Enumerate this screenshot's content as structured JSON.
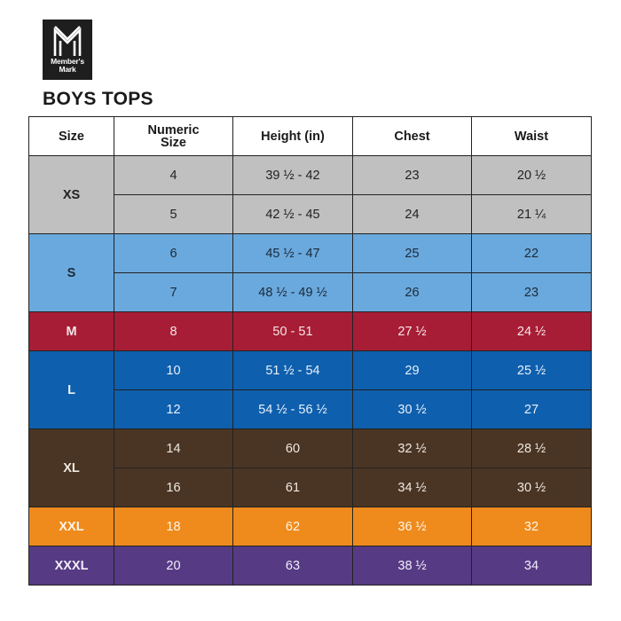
{
  "brand": {
    "line1": "Member's",
    "line2": "Mark",
    "logo_icon": "m-logo-icon"
  },
  "title": "BOYS TOPS",
  "table": {
    "headers": [
      "Size",
      "Numeric Size",
      "Height (in)",
      "Chest",
      "Waist"
    ],
    "groups": [
      {
        "size": "XS",
        "color": "#c0c0c0",
        "rows": [
          {
            "numeric": "4",
            "height": "39 ½ - 42",
            "chest": "23",
            "waist": "20 ½"
          },
          {
            "numeric": "5",
            "height": "42 ½ - 45",
            "chest": "24",
            "waist": "21 ¼"
          }
        ]
      },
      {
        "size": "S",
        "color": "#6aa9dd",
        "rows": [
          {
            "numeric": "6",
            "height": "45 ½ - 47",
            "chest": "25",
            "waist": "22"
          },
          {
            "numeric": "7",
            "height": "48 ½ - 49 ½",
            "chest": "26",
            "waist": "23"
          }
        ]
      },
      {
        "size": "M",
        "color": "#a71d35",
        "rows": [
          {
            "numeric": "8",
            "height": "50 - 51",
            "chest": "27 ½",
            "waist": "24 ½"
          }
        ]
      },
      {
        "size": "L",
        "color": "#0e5fad",
        "rows": [
          {
            "numeric": "10",
            "height": "51 ½ - 54",
            "chest": "29",
            "waist": "25 ½"
          },
          {
            "numeric": "12",
            "height": "54 ½ - 56 ½",
            "chest": "30 ½",
            "waist": "27"
          }
        ]
      },
      {
        "size": "XL",
        "color": "#4a3525",
        "rows": [
          {
            "numeric": "14",
            "height": "60",
            "chest": "32 ½",
            "waist": "28 ½"
          },
          {
            "numeric": "16",
            "height": "61",
            "chest": "34 ½",
            "waist": "30 ½"
          }
        ]
      },
      {
        "size": "XXL",
        "color": "#ef8a1c",
        "rows": [
          {
            "numeric": "18",
            "height": "62",
            "chest": "36 ½",
            "waist": "32"
          }
        ]
      },
      {
        "size": "XXXL",
        "color": "#563b84",
        "rows": [
          {
            "numeric": "20",
            "height": "63",
            "chest": "38 ½",
            "waist": "34"
          }
        ]
      }
    ]
  }
}
